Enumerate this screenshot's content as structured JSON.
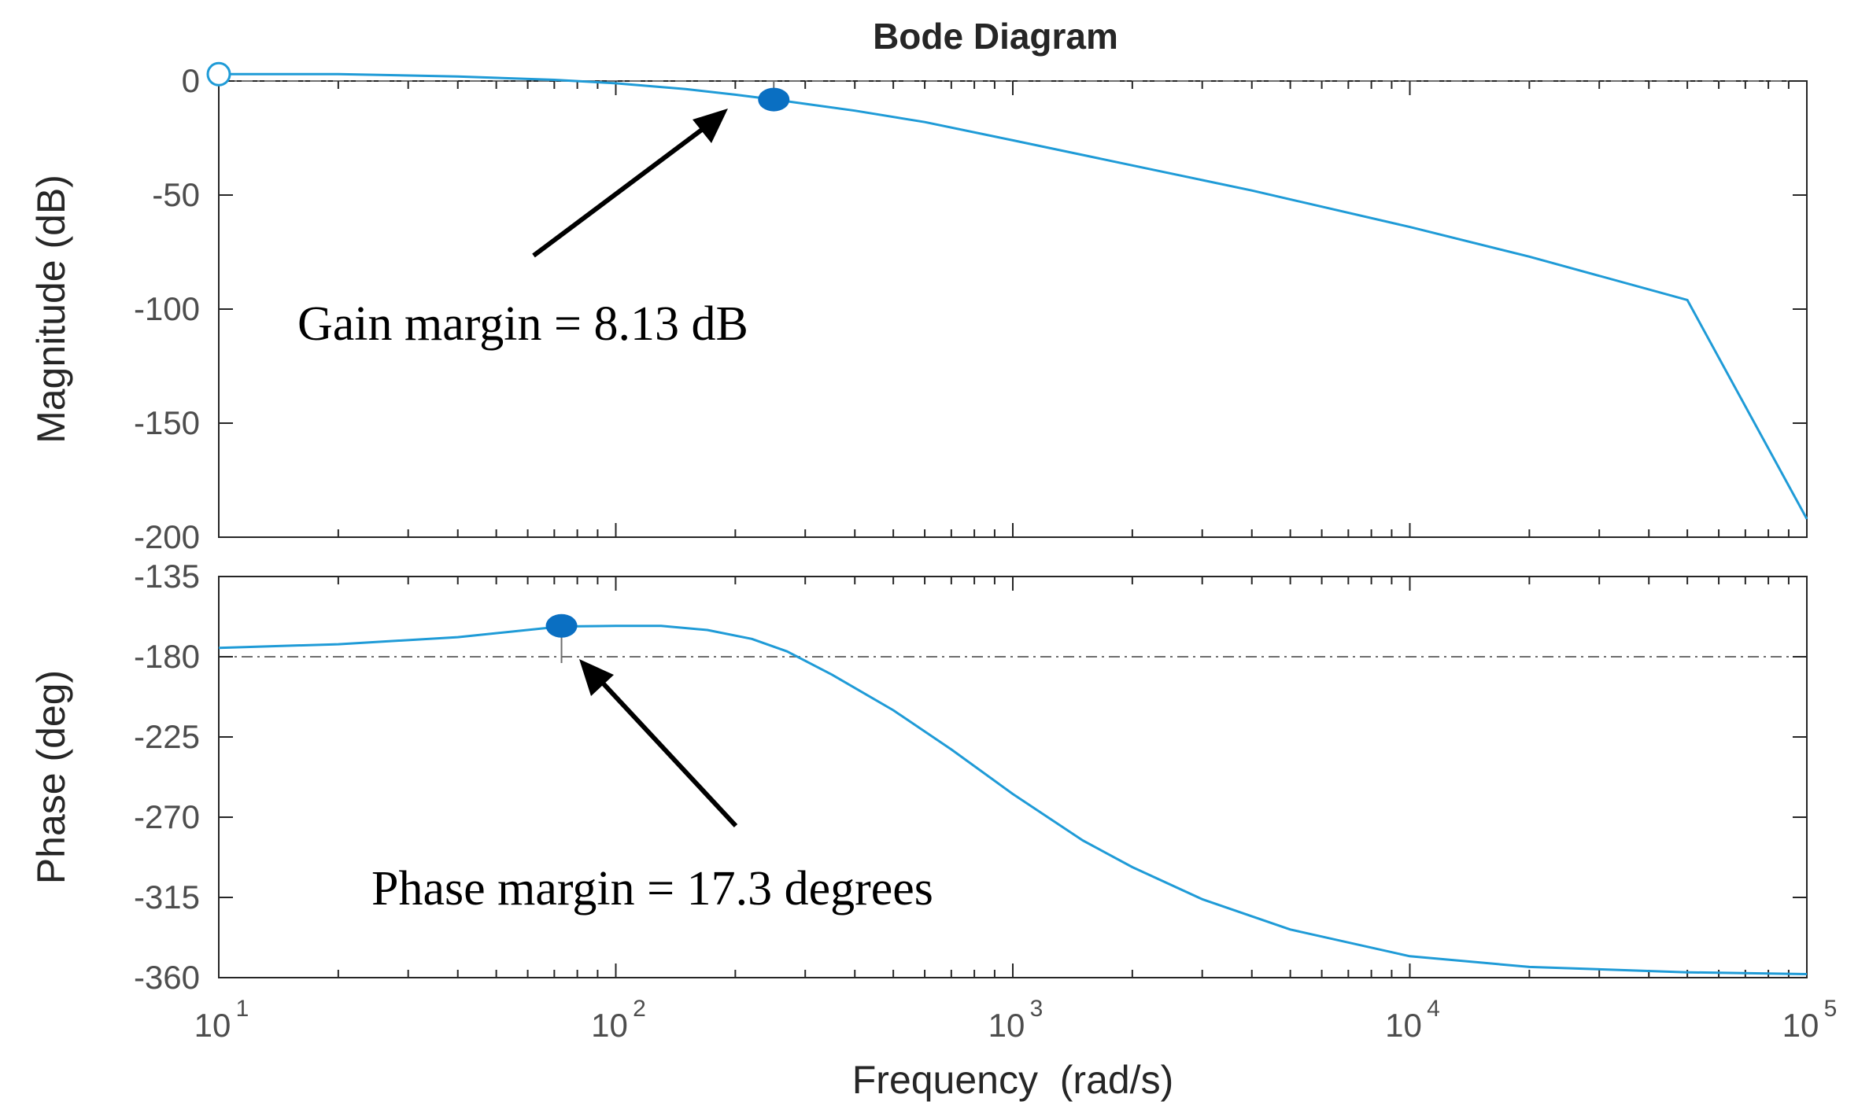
{
  "chart_data": {
    "type": "line",
    "title": "Bode Diagram",
    "xlabel": "Frequency  (rad/s)",
    "xscale": "log",
    "xlim": [
      10,
      100000
    ],
    "xticks": [
      {
        "base": "10",
        "exp": "1",
        "value": 10
      },
      {
        "base": "10",
        "exp": "2",
        "value": 100
      },
      {
        "base": "10",
        "exp": "3",
        "value": 1000
      },
      {
        "base": "10",
        "exp": "4",
        "value": 10000
      },
      {
        "base": "10",
        "exp": "5",
        "value": 100000
      }
    ],
    "colors": {
      "series": "#1f9bd7",
      "marker": "#0a6fc2",
      "axis": "#262626",
      "tick_text": "#4d4d4d",
      "reference": "#6e6e6e",
      "arrow": "#000000"
    },
    "magnitude": {
      "ylabel": "Magnitude (dB)",
      "ylim": [
        -200,
        0
      ],
      "yticks": [
        0,
        -50,
        -100,
        -150,
        -200
      ],
      "ytick_labels": [
        "0",
        "-50",
        "-100",
        "-150",
        "-200"
      ],
      "reference_line": 0,
      "x": [
        10,
        20,
        40,
        70,
        100,
        150,
        200,
        250,
        300,
        400,
        600,
        1000,
        2000,
        4000,
        10000,
        20000,
        50000,
        100000
      ],
      "y": [
        3,
        3,
        2,
        0.5,
        -1,
        -3.5,
        -6,
        -8.1,
        -10,
        -13,
        -18,
        -26,
        -37,
        -48,
        -64,
        -77,
        -96,
        -192
      ],
      "gain_crossover_marker": {
        "x": 10,
        "y": 3
      },
      "gain_margin_marker": {
        "x": 250,
        "y": -8.13
      },
      "annotation": "Gain margin = 8.13 dB"
    },
    "phase": {
      "ylabel": "Phase (deg)",
      "ylim": [
        -360,
        -135
      ],
      "yticks": [
        -135,
        -180,
        -225,
        -270,
        -315,
        -360
      ],
      "ytick_labels": [
        "-135",
        "-180",
        "-225",
        "-270",
        "-315",
        "-360"
      ],
      "reference_line": -180,
      "x": [
        10,
        20,
        40,
        73,
        100,
        130,
        170,
        220,
        270,
        350,
        500,
        700,
        1000,
        1500,
        2000,
        3000,
        5000,
        10000,
        20000,
        50000,
        100000
      ],
      "y": [
        -175,
        -173,
        -169,
        -163,
        -162.7,
        -162.7,
        -165,
        -170,
        -177,
        -190,
        -210,
        -232,
        -257,
        -283,
        -298,
        -316,
        -333,
        -348,
        -354,
        -357,
        -358
      ],
      "phase_margin_marker": {
        "x": 73,
        "y": -162.7
      },
      "annotation": "Phase margin = 17.3 degrees"
    }
  }
}
